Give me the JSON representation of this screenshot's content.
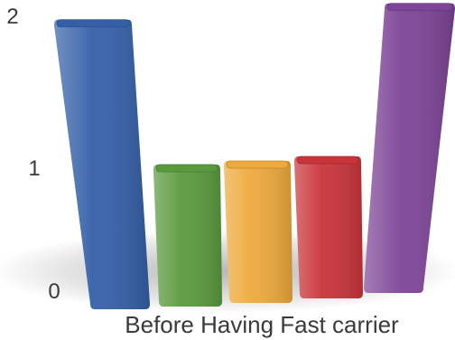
{
  "chart_data": {
    "type": "bar",
    "title": "",
    "xlabel": "Before Having Fast carrier",
    "ylabel": "",
    "categories": [
      "",
      "",
      "",
      "",
      ""
    ],
    "values": [
      2,
      1,
      1,
      1,
      2
    ],
    "colors": [
      "#3560a8",
      "#5a9a3e",
      "#eda93c",
      "#c9343a",
      "#7d4597"
    ],
    "ylim": [
      0,
      2
    ],
    "yticks": [
      "0",
      "1",
      "2"
    ],
    "grid": false,
    "legend": "none",
    "style": "3d-perspective"
  }
}
